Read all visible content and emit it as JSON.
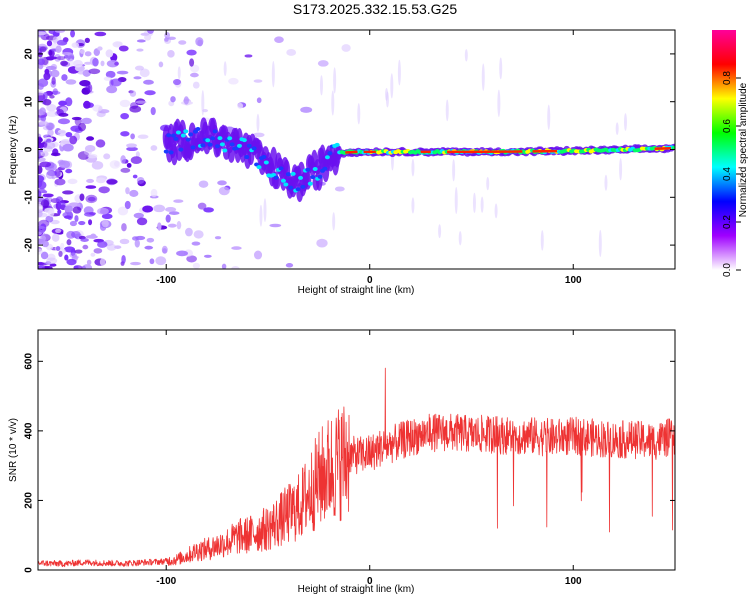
{
  "title": "S173.2025.332.15.53.G25",
  "chart_data": [
    {
      "type": "heatmap",
      "title": "S173.2025.332.15.53.G25",
      "xlabel": "Height of straight line (km)",
      "ylabel": "Frequency (Hz)",
      "xlim": [
        -163,
        150
      ],
      "ylim": [
        -25,
        25
      ],
      "xticks": [
        -100,
        0,
        100
      ],
      "xtick_labels": [
        "-100",
        "0",
        "100"
      ],
      "yticks": [
        -20,
        -10,
        0,
        10,
        20
      ],
      "ytick_labels": [
        "-20",
        "-10",
        "0",
        "10",
        "20"
      ],
      "colorbar": {
        "label": "Normalized spectral amplitude",
        "range": [
          0.0,
          1.0
        ],
        "ticks": [
          0.0,
          0.2,
          0.4,
          0.6,
          0.8
        ],
        "tick_labels": [
          "0.0",
          "0.2",
          "0.4",
          "0.6",
          "0.8"
        ],
        "colors": [
          "#ffffff",
          "#9f00ff",
          "#0000ff",
          "#00ffff",
          "#00ff00",
          "#ffff00",
          "#ff0000",
          "#ff0099"
        ]
      },
      "signal_track": [
        {
          "x": -100,
          "freq": 1.0
        },
        {
          "x": -80,
          "freq": 3.0
        },
        {
          "x": -60,
          "freq": 0.0
        },
        {
          "x": -45,
          "freq": -5.0
        },
        {
          "x": -35,
          "freq": -7.0
        },
        {
          "x": -25,
          "freq": -4.0
        },
        {
          "x": -18,
          "freq": -1.0
        },
        {
          "x": -10,
          "freq": -0.5
        },
        {
          "x": 0,
          "freq": -0.5
        },
        {
          "x": 20,
          "freq": -0.5
        },
        {
          "x": 60,
          "freq": -0.5
        },
        {
          "x": 100,
          "freq": -0.3
        },
        {
          "x": 130,
          "freq": 0.0
        },
        {
          "x": 150,
          "freq": 0.3
        }
      ]
    },
    {
      "type": "line",
      "xlabel": "Height of straight line (km)",
      "ylabel": "SNR (10 * v/v)",
      "xlim": [
        -163,
        150
      ],
      "ylim": [
        0,
        690
      ],
      "xticks": [
        -100,
        0,
        100
      ],
      "xtick_labels": [
        "-100",
        "0",
        "100"
      ],
      "yticks": [
        0,
        200,
        400,
        600
      ],
      "ytick_labels": [
        "0",
        "200",
        "400",
        "600"
      ],
      "color": "#ee3333",
      "series": [
        {
          "name": "SNR",
          "x": [
            -163,
            -150,
            -140,
            -130,
            -120,
            -110,
            -100,
            -95,
            -90,
            -85,
            -80,
            -75,
            -70,
            -65,
            -60,
            -55,
            -50,
            -45,
            -40,
            -35,
            -30,
            -25,
            -20,
            -15,
            -10,
            -5,
            0,
            5,
            10,
            15,
            20,
            25,
            30,
            40,
            50,
            60,
            70,
            80,
            90,
            100,
            110,
            120,
            130,
            140,
            150
          ],
          "values": [
            20,
            18,
            22,
            20,
            19,
            22,
            25,
            30,
            40,
            55,
            60,
            70,
            80,
            95,
            100,
            110,
            120,
            140,
            160,
            180,
            220,
            260,
            290,
            310,
            330,
            330,
            335,
            350,
            360,
            370,
            380,
            390,
            395,
            395,
            390,
            390,
            385,
            385,
            380,
            385,
            380,
            375,
            375,
            370,
            385
          ]
        }
      ]
    }
  ]
}
